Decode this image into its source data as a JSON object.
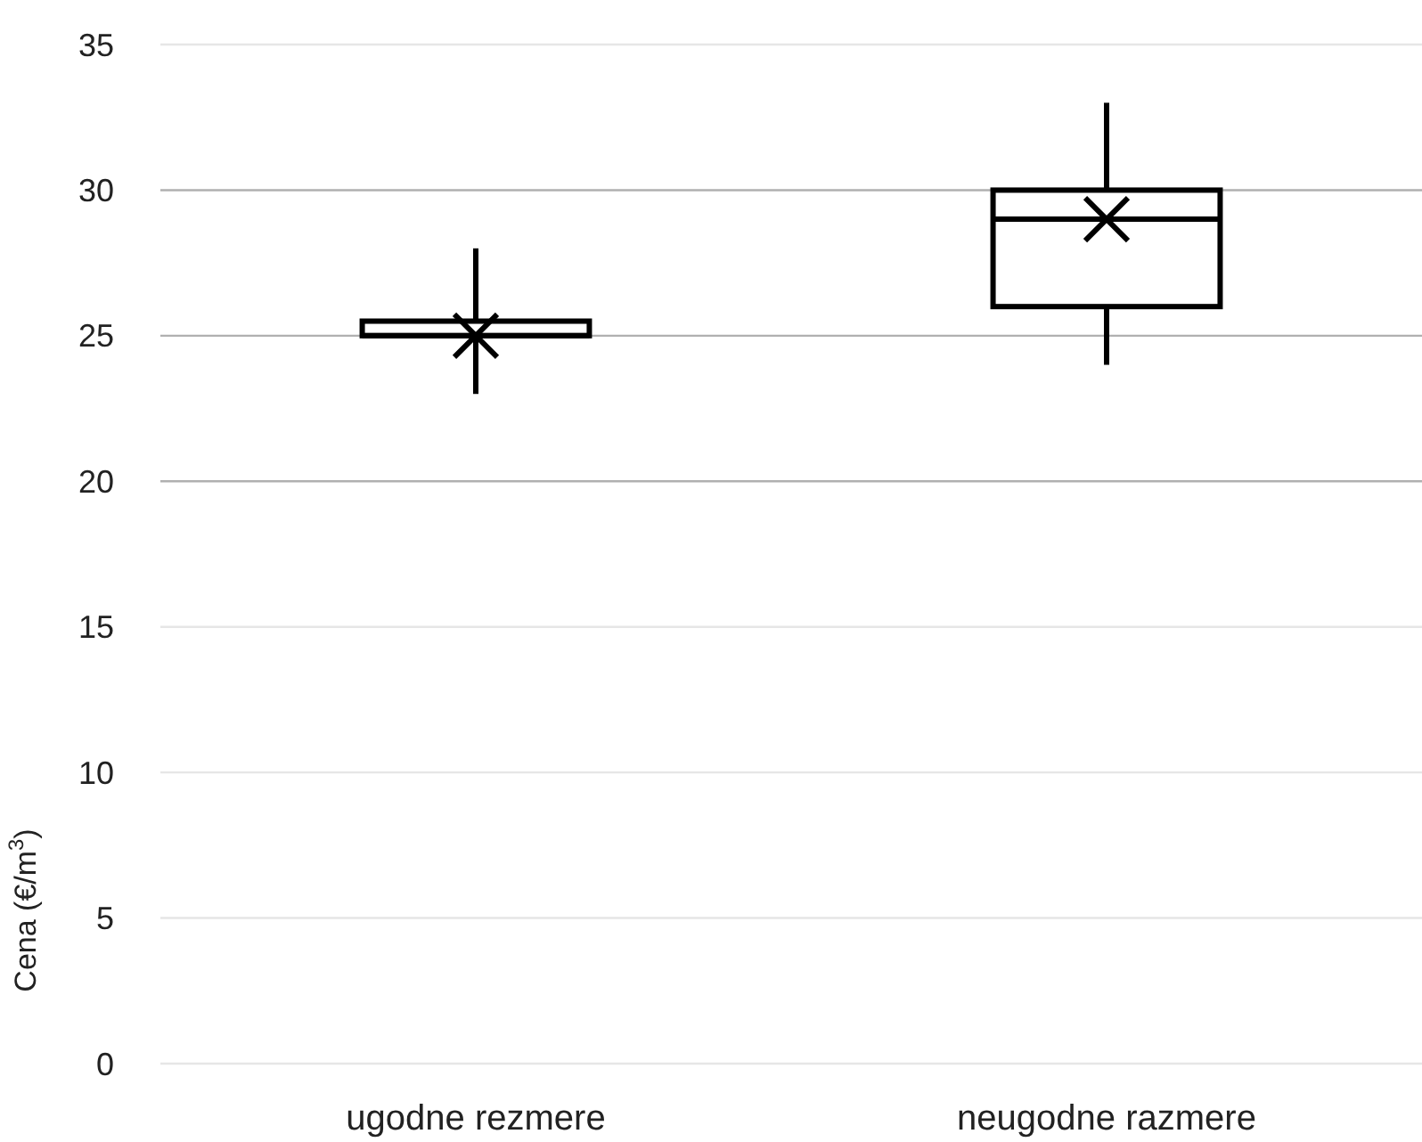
{
  "chart_data": {
    "type": "box",
    "ylabel": "Cena (€/m$^{3}$)",
    "categories": [
      "ugodne rezmere",
      "neugodne razmere"
    ],
    "boxes": [
      {
        "low": 23,
        "q1": 25,
        "median": 25,
        "q3": 25.5,
        "high": 28,
        "mean": 25
      },
      {
        "low": 24,
        "q1": 26,
        "median": 29,
        "q3": 30,
        "high": 33,
        "mean": 29
      }
    ],
    "color": "#000000",
    "ylim": [
      0,
      35
    ],
    "yticks": [
      0,
      5,
      10,
      15,
      20,
      25,
      30,
      35
    ],
    "grid": "y"
  }
}
